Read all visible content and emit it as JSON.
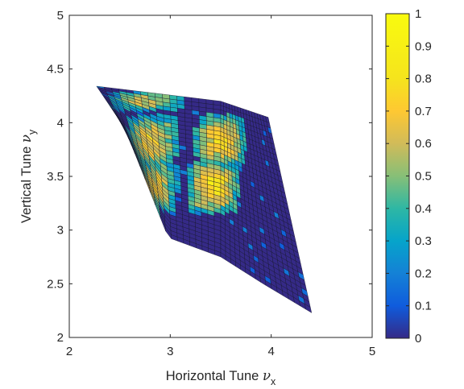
{
  "chart_data": {
    "type": "heatmap",
    "title": "",
    "xlabel": {
      "text": "Horizontal Tune",
      "symbol": "ν",
      "subscript": "x"
    },
    "ylabel": {
      "text": "Vertical Tune",
      "symbol": "ν",
      "subscript": "y"
    },
    "xlim": [
      2,
      5
    ],
    "ylim": [
      2,
      5
    ],
    "xticks": [
      "2",
      "3",
      "4",
      "5"
    ],
    "yticks": [
      "2",
      "2.5",
      "3",
      "3.5",
      "4",
      "4.5",
      "5"
    ],
    "colorbar": {
      "colormap": "parula",
      "clim": [
        0,
        1
      ],
      "ticks": [
        "0",
        "0.1",
        "0.2",
        "0.3",
        "0.4",
        "0.5",
        "0.6",
        "0.7",
        "0.8",
        "0.9",
        "1"
      ]
    },
    "grid": false,
    "surface_outline": {
      "vertices": [
        [
          2.27,
          4.34
        ],
        [
          3.5,
          4.2
        ],
        [
          3.97,
          4.05
        ],
        [
          4.4,
          2.23
        ],
        [
          3.92,
          2.5
        ],
        [
          3.5,
          2.75
        ],
        [
          2.98,
          2.93
        ],
        [
          2.55,
          3.95
        ]
      ]
    },
    "mesh_density": [
      34,
      36
    ],
    "hotspots": [
      {
        "label": "upper-left",
        "nu_x": 2.82,
        "nu_y": 3.82,
        "peak": 0.7
      },
      {
        "label": "upper-right",
        "nu_x": 3.5,
        "nu_y": 3.83,
        "peak": 0.74
      },
      {
        "label": "lower-left",
        "nu_x": 2.83,
        "nu_y": 3.42,
        "peak": 0.66
      },
      {
        "label": "lower-right",
        "nu_x": 3.43,
        "nu_y": 3.4,
        "peak": 0.8
      },
      {
        "label": "top-strip",
        "nu_x": 2.77,
        "nu_y": 4.2,
        "peak": 0.6
      }
    ],
    "colors": {
      "background": "#ffffff",
      "axes": "#262626",
      "edge": "#14142a"
    }
  }
}
